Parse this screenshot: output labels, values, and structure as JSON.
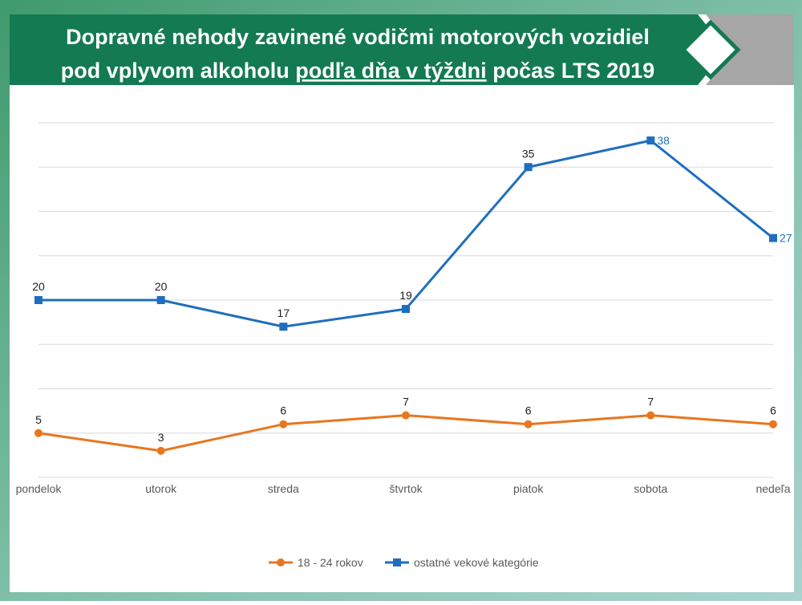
{
  "chart_data": {
    "type": "line",
    "title": {
      "line1": "Dopravné nehody zavinené vodičmi motorových vozidiel",
      "line2_start": "pod vplyvom alkoholu",
      "line2_underlined": "podľa dňa v týždni",
      "line2_end": "počas LTS 2019"
    },
    "categories": [
      "pondelok",
      "utorok",
      "streda",
      "štvrtok",
      "piatok",
      "sobota",
      "nedeľa"
    ],
    "series": [
      {
        "name": "18 - 24 rokov",
        "color": "#e8761f",
        "marker": "circle",
        "values": [
          5,
          3,
          6,
          7,
          6,
          7,
          6
        ]
      },
      {
        "name": "ostatné vekové kategórie",
        "color": "#1f6ebd",
        "marker": "square",
        "values": [
          20,
          20,
          17,
          19,
          35,
          38,
          27
        ]
      }
    ],
    "ylim": [
      0,
      40
    ],
    "yticks": [
      0,
      5,
      10,
      15,
      20,
      25,
      30,
      35,
      40
    ],
    "grid": true,
    "legend": "bottom"
  }
}
